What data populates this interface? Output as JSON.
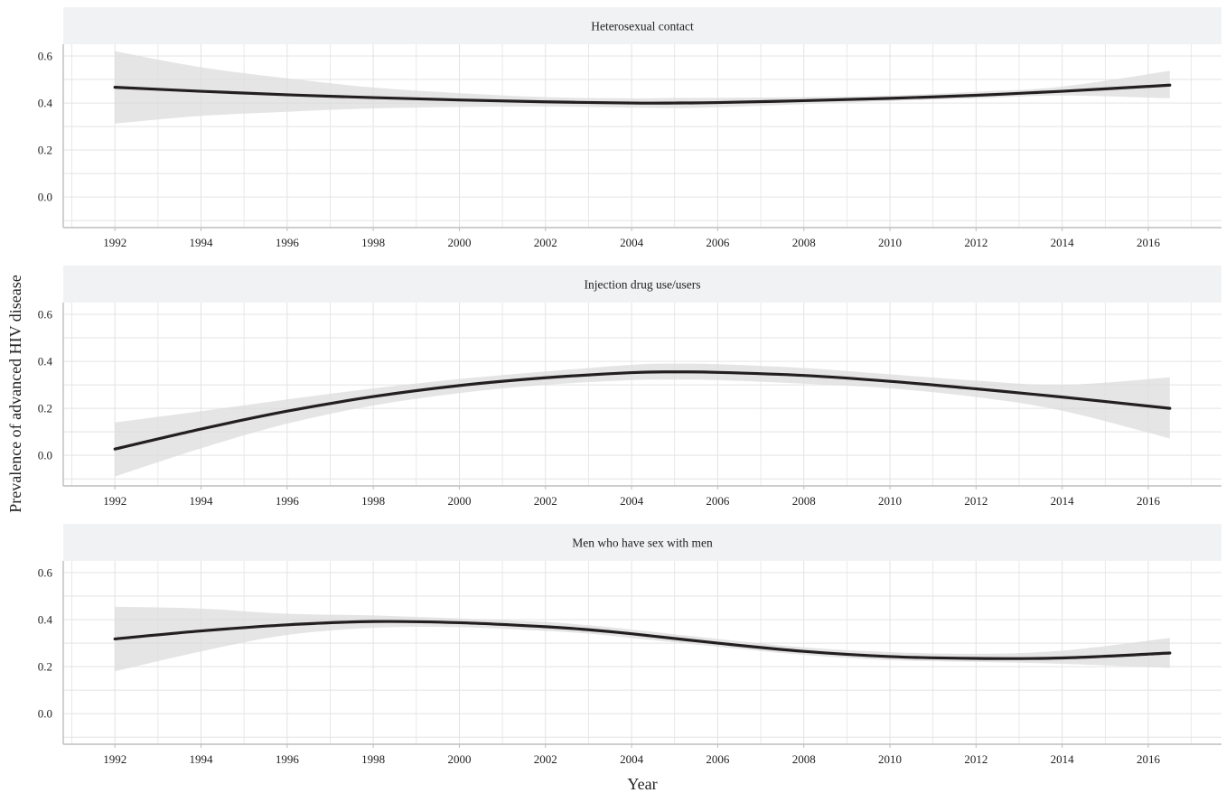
{
  "chart_data": [
    {
      "type": "line",
      "title": "Heterosexual contact",
      "xlabel": "Year",
      "ylabel": "Prevalence of advanced HIV disease",
      "xlim": [
        1990.8,
        2017.7
      ],
      "ylim": [
        -0.13,
        0.65
      ],
      "x_ticks": [
        1992,
        1994,
        1996,
        1998,
        2000,
        2002,
        2004,
        2006,
        2008,
        2010,
        2012,
        2014,
        2016
      ],
      "x_tick_labels": [
        "1992",
        "1994",
        "1996",
        "1998",
        "2000",
        "2002",
        "2004",
        "2006",
        "2008",
        "2010",
        "2012",
        "2014",
        "2016"
      ],
      "y_ticks": [
        0.0,
        0.2,
        0.4,
        0.6
      ],
      "y_tick_labels": [
        "0.0",
        "0.2",
        "0.4",
        "0.6"
      ],
      "grid": true,
      "series": [
        {
          "color": "#231f20",
          "x": [
            1992,
            1994,
            1996,
            1998,
            2000,
            2002,
            2004,
            2005,
            2006,
            2008,
            2010,
            2012,
            2014,
            2016.5
          ],
          "y": [
            0.467,
            0.45,
            0.435,
            0.423,
            0.413,
            0.405,
            0.4,
            0.4,
            0.402,
            0.41,
            0.42,
            0.433,
            0.45,
            0.476
          ],
          "lower": [
            0.313,
            0.345,
            0.363,
            0.377,
            0.383,
            0.385,
            0.38,
            0.378,
            0.382,
            0.395,
            0.408,
            0.42,
            0.432,
            0.42
          ],
          "upper": [
            0.62,
            0.552,
            0.505,
            0.466,
            0.442,
            0.425,
            0.42,
            0.422,
            0.422,
            0.425,
            0.432,
            0.448,
            0.47,
            0.537
          ]
        }
      ]
    },
    {
      "type": "line",
      "title": "Injection drug use/users",
      "xlabel": "Year",
      "ylabel": "Prevalence of advanced HIV disease",
      "xlim": [
        1990.8,
        2017.7
      ],
      "ylim": [
        -0.13,
        0.65
      ],
      "x_ticks": [
        1992,
        1994,
        1996,
        1998,
        2000,
        2002,
        2004,
        2006,
        2008,
        2010,
        2012,
        2014,
        2016
      ],
      "x_tick_labels": [
        "1992",
        "1994",
        "1996",
        "1998",
        "2000",
        "2002",
        "2004",
        "2006",
        "2008",
        "2010",
        "2012",
        "2014",
        "2016"
      ],
      "y_ticks": [
        0.0,
        0.2,
        0.4,
        0.6
      ],
      "y_tick_labels": [
        "0.0",
        "0.2",
        "0.4",
        "0.6"
      ],
      "grid": true,
      "series": [
        {
          "color": "#231f20",
          "x": [
            1992,
            1994,
            1996,
            1998,
            2000,
            2002,
            2004,
            2005,
            2006,
            2008,
            2010,
            2012,
            2014,
            2016.5
          ],
          "y": [
            0.027,
            0.112,
            0.188,
            0.25,
            0.297,
            0.33,
            0.352,
            0.355,
            0.353,
            0.34,
            0.315,
            0.283,
            0.248,
            0.2
          ],
          "lower": [
            -0.09,
            0.03,
            0.135,
            0.212,
            0.265,
            0.3,
            0.32,
            0.322,
            0.32,
            0.305,
            0.285,
            0.248,
            0.19,
            0.072
          ],
          "upper": [
            0.14,
            0.188,
            0.238,
            0.285,
            0.325,
            0.357,
            0.385,
            0.39,
            0.388,
            0.372,
            0.345,
            0.318,
            0.3,
            0.332
          ]
        }
      ]
    },
    {
      "type": "line",
      "title": "Men who have sex with men",
      "xlabel": "Year",
      "ylabel": "Prevalence of advanced HIV disease",
      "xlim": [
        1990.8,
        2017.7
      ],
      "ylim": [
        -0.13,
        0.65
      ],
      "x_ticks": [
        1992,
        1994,
        1996,
        1998,
        2000,
        2002,
        2004,
        2006,
        2008,
        2010,
        2012,
        2014,
        2016
      ],
      "x_tick_labels": [
        "1992",
        "1994",
        "1996",
        "1998",
        "2000",
        "2002",
        "2004",
        "2006",
        "2008",
        "2010",
        "2012",
        "2014",
        "2016"
      ],
      "y_ticks": [
        0.0,
        0.2,
        0.4,
        0.6
      ],
      "y_tick_labels": [
        "0.0",
        "0.2",
        "0.4",
        "0.6"
      ],
      "grid": true,
      "series": [
        {
          "color": "#231f20",
          "x": [
            1992,
            1994,
            1996,
            1998,
            2000,
            2002,
            2003,
            2004,
            2006,
            2008,
            2010,
            2012,
            2014,
            2016.5
          ],
          "y": [
            0.318,
            0.352,
            0.378,
            0.392,
            0.387,
            0.37,
            0.357,
            0.34,
            0.3,
            0.265,
            0.243,
            0.235,
            0.237,
            0.258
          ],
          "lower": [
            0.18,
            0.265,
            0.335,
            0.365,
            0.368,
            0.352,
            0.34,
            0.322,
            0.285,
            0.25,
            0.228,
            0.22,
            0.212,
            0.195
          ],
          "upper": [
            0.455,
            0.447,
            0.425,
            0.418,
            0.405,
            0.39,
            0.376,
            0.358,
            0.318,
            0.282,
            0.262,
            0.255,
            0.268,
            0.322
          ]
        }
      ]
    }
  ],
  "colors": {
    "strip_background": "#f1f2f3",
    "ribbon": "#dcdcdc",
    "grid": "#e3e3e3",
    "axis": "#bdbdbd",
    "line": "#231f20"
  }
}
